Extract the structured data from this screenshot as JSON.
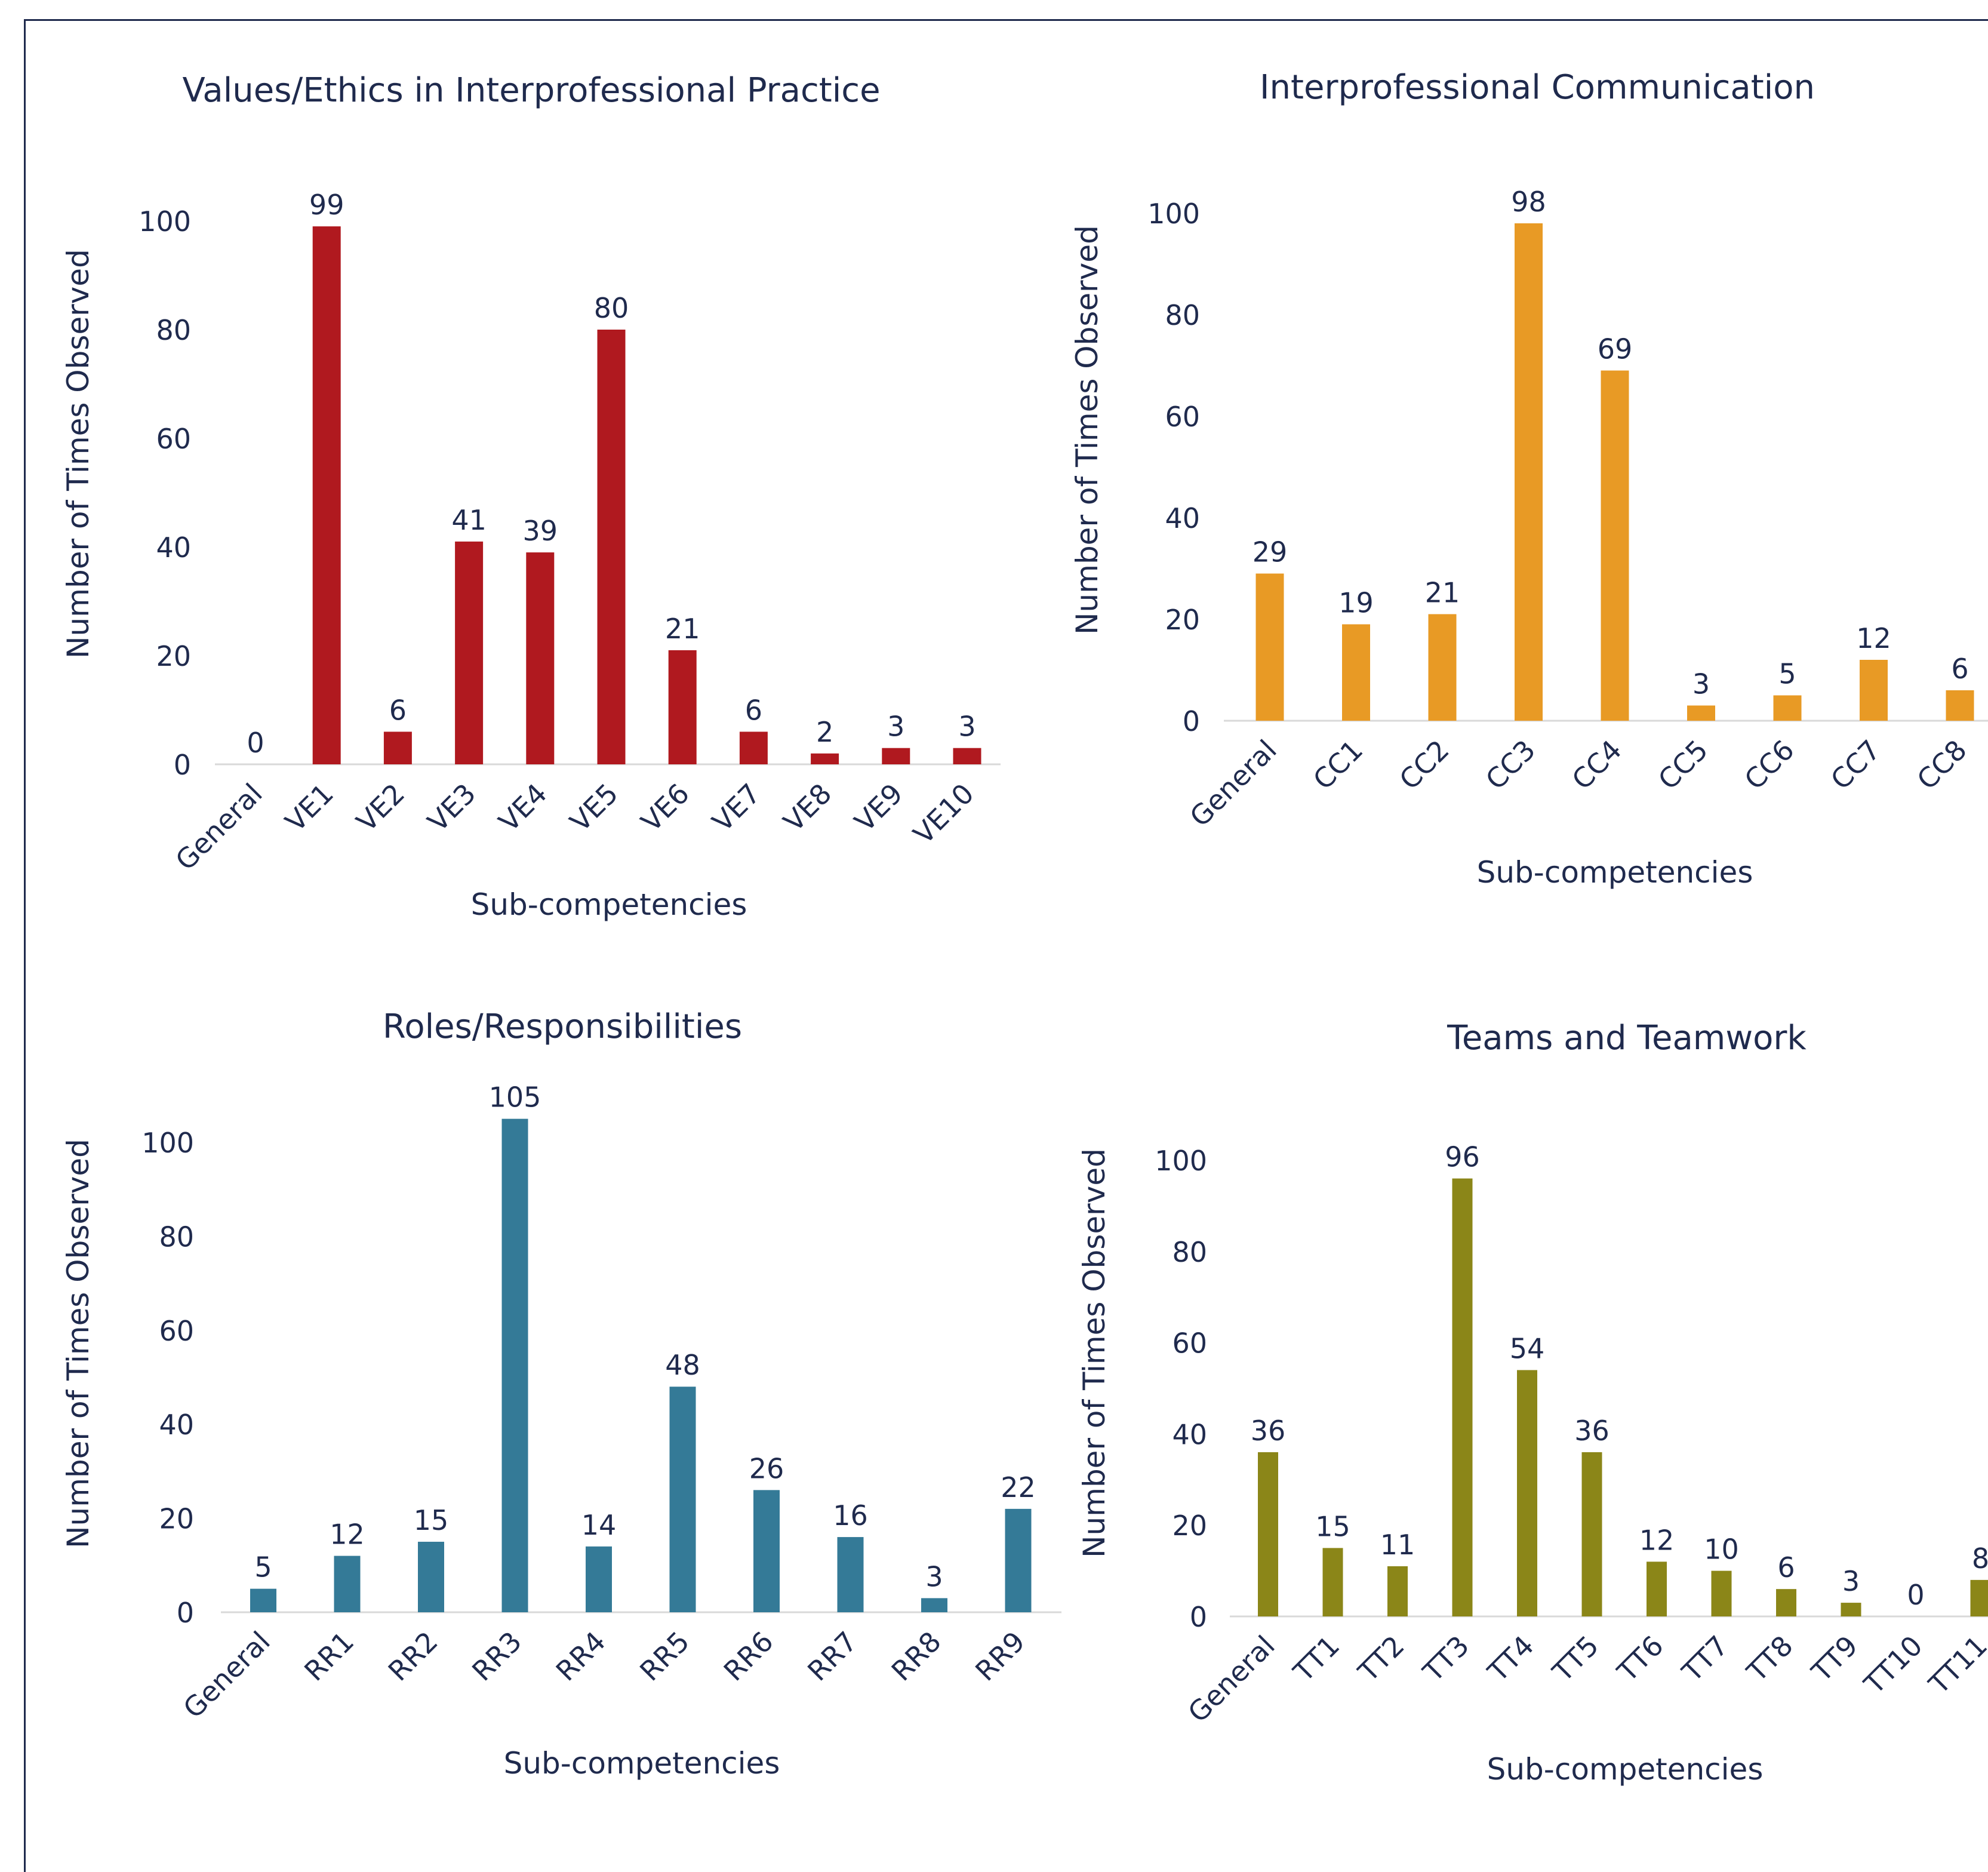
{
  "chart_data": [
    {
      "type": "bar",
      "title": "Values/Ethics in Interprofessional Practice",
      "xlabel": "Sub-competencies",
      "ylabel": "Number of Times Observed",
      "categories": [
        "General",
        "VE1",
        "VE2",
        "VE3",
        "VE4",
        "VE5",
        "VE6",
        "VE7",
        "VE8",
        "VE9",
        "VE10"
      ],
      "values": [
        0,
        99,
        6,
        41,
        39,
        80,
        21,
        6,
        2,
        3,
        3
      ],
      "ylim": [
        0,
        100
      ],
      "yticks": [
        0,
        20,
        40,
        60,
        80,
        100
      ],
      "color": "#b0191f",
      "grid": false,
      "legend": "none"
    },
    {
      "type": "bar",
      "title": "Interprofessional Communication",
      "xlabel": "Sub-competencies",
      "ylabel": "Number of Times Observed",
      "categories": [
        "General",
        "CC1",
        "CC2",
        "CC3",
        "CC4",
        "CC5",
        "CC6",
        "CC7",
        "CC8"
      ],
      "values": [
        29,
        19,
        21,
        98,
        69,
        3,
        5,
        12,
        6
      ],
      "ylim": [
        0,
        100
      ],
      "yticks": [
        0,
        20,
        40,
        60,
        80,
        100
      ],
      "color": "#e89a25",
      "grid": false,
      "legend": "none"
    },
    {
      "type": "bar",
      "title": "Roles/Responsibilities",
      "xlabel": "Sub-competencies",
      "ylabel": "Number of Times Observed",
      "categories": [
        "General",
        "RR1",
        "RR2",
        "RR3",
        "RR4",
        "RR5",
        "RR6",
        "RR7",
        "RR8",
        "RR9"
      ],
      "values": [
        5,
        12,
        15,
        105,
        14,
        48,
        26,
        16,
        3,
        22
      ],
      "ylim": [
        0,
        100
      ],
      "yticks": [
        0,
        20,
        40,
        60,
        80,
        100
      ],
      "color": "#347a97",
      "grid": false,
      "legend": "none"
    },
    {
      "type": "bar",
      "title": "Teams and Teamwork",
      "xlabel": "Sub-competencies",
      "ylabel": "Number of Times Observed",
      "categories": [
        "General",
        "TT1",
        "TT2",
        "TT3",
        "TT4",
        "TT5",
        "TT6",
        "TT7",
        "TT8",
        "TT9",
        "TT10",
        "TT11"
      ],
      "values": [
        36,
        15,
        11,
        96,
        54,
        36,
        12,
        10,
        6,
        3,
        0,
        8
      ],
      "ylim": [
        0,
        100
      ],
      "yticks": [
        0,
        20,
        40,
        60,
        80,
        100
      ],
      "color": "#8b8618",
      "grid": false,
      "legend": "none"
    }
  ]
}
